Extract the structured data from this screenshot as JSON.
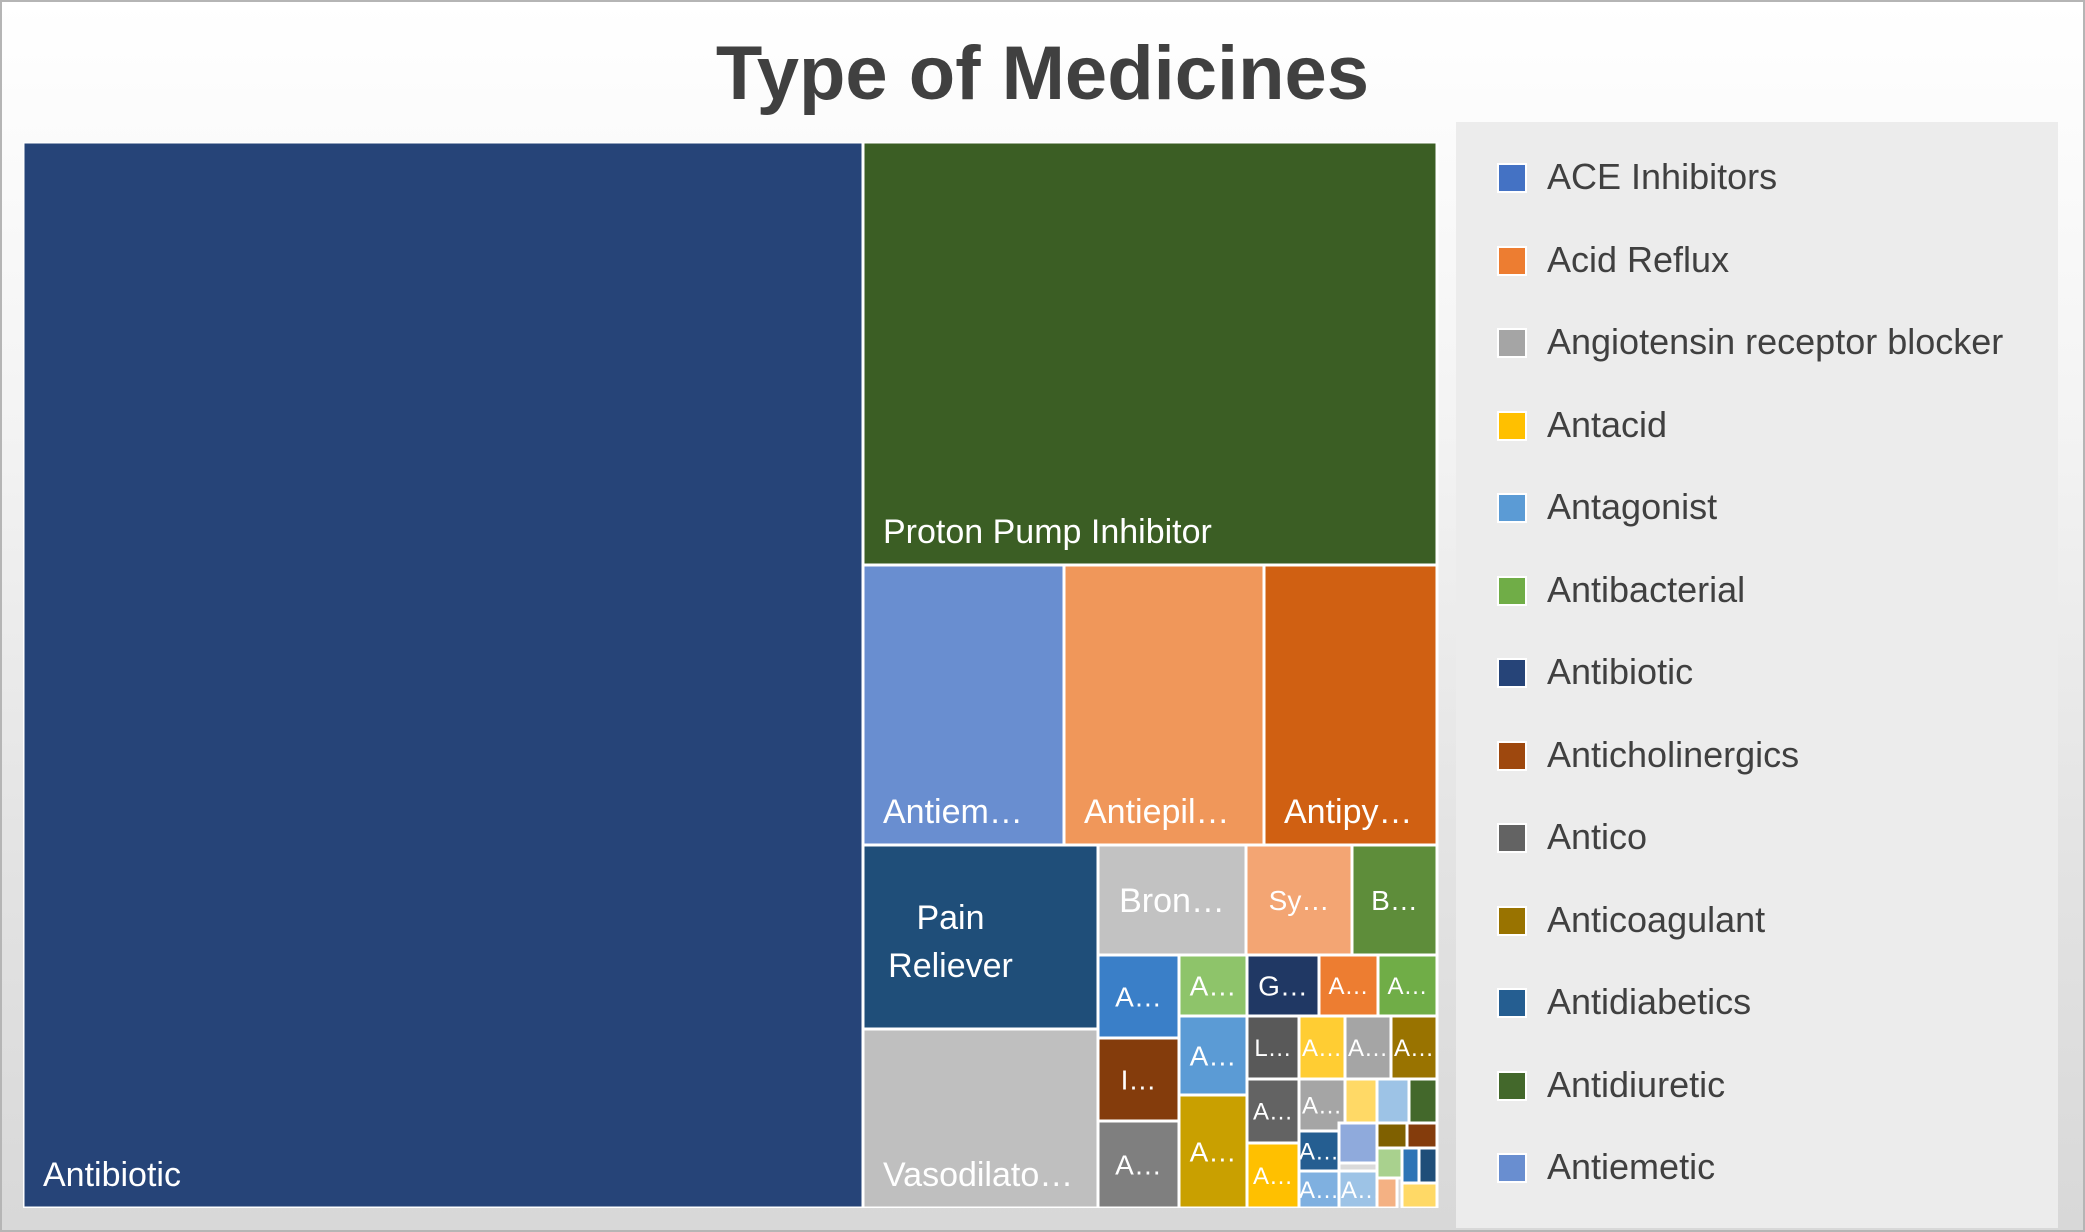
{
  "chart_data": {
    "type": "treemap",
    "title": "Type of Medicines",
    "legend_position": "right",
    "legend": [
      {
        "label": "ACE Inhibitors",
        "color": "#4472c4"
      },
      {
        "label": "Acid Reflux",
        "color": "#ed7d31"
      },
      {
        "label": "Angiotensin receptor blocker",
        "color": "#a5a5a5"
      },
      {
        "label": "Antacid",
        "color": "#ffc000"
      },
      {
        "label": "Antagonist",
        "color": "#5b9bd5"
      },
      {
        "label": "Antibacterial",
        "color": "#70ad47"
      },
      {
        "label": "Antibiotic",
        "color": "#264478"
      },
      {
        "label": "Anticholinergics",
        "color": "#9e480e"
      },
      {
        "label": "Antico",
        "color": "#636363"
      },
      {
        "label": "Anticoagulant",
        "color": "#997300"
      },
      {
        "label": "Antidiabetics",
        "color": "#255e91"
      },
      {
        "label": "Antidiuretic",
        "color": "#43682b"
      },
      {
        "label": "Antiemetic",
        "color": "#698ed0"
      }
    ],
    "tiles": [
      {
        "label": "Antibiotic",
        "value": 1000,
        "color": "#264478"
      },
      {
        "label": "Proton Pump Inhibitor",
        "value": 270,
        "color": "#3b5e24"
      },
      {
        "label": "Antiem…",
        "value": 62,
        "color": "#698ed0"
      },
      {
        "label": "Antiepil…",
        "value": 62,
        "color": "#f0975a"
      },
      {
        "label": "Antipy…",
        "value": 54,
        "color": "#d06012"
      },
      {
        "label": "Pain Reliever",
        "value": 47,
        "color": "#1f4e79"
      },
      {
        "label": "Vasodilato…",
        "value": 47,
        "color": "#bfbfbf"
      },
      {
        "label": "Bron…",
        "value": 18,
        "color": "#c2c2c2"
      },
      {
        "label": "Sy…",
        "value": 13,
        "color": "#f3a573"
      },
      {
        "label": "B…",
        "value": 10,
        "color": "#5e8d3a"
      },
      {
        "label": "A…",
        "value": 9,
        "color": "#3a7fc8"
      },
      {
        "label": "A…",
        "value": 8.5,
        "color": "#8ec46a"
      },
      {
        "label": "I…",
        "value": 6.5,
        "color": "#843c0c"
      },
      {
        "label": "A…",
        "value": 7,
        "color": "#5b9bd5"
      },
      {
        "label": "A…",
        "value": 6.5,
        "color": "#7f7f7f"
      },
      {
        "label": "A…",
        "value": 6.5,
        "color": "#c9a000"
      },
      {
        "label": "G…",
        "value": 5,
        "color": "#203864"
      },
      {
        "label": "A…",
        "value": 4,
        "color": "#ed7d31"
      },
      {
        "label": "A…",
        "value": 4,
        "color": "#70ad47"
      },
      {
        "label": "L…",
        "value": 4,
        "color": "#595959"
      },
      {
        "label": "A…",
        "value": 3.5,
        "color": "#636363"
      },
      {
        "label": "A…",
        "value": 3,
        "color": "#ffc000"
      },
      {
        "label": "A…",
        "value": 3,
        "color": "#ffcd33"
      },
      {
        "label": "A…",
        "value": 3,
        "color": "#a5a5a5"
      },
      {
        "label": "A…",
        "value": 3,
        "color": "#997300"
      },
      {
        "label": "A…",
        "value": 2.5,
        "color": "#a5a5a5"
      },
      {
        "label": "A…",
        "value": 2,
        "color": "#255e91"
      },
      {
        "label": "A…",
        "value": 2,
        "color": "#9dc3e6"
      },
      {
        "label": "A…",
        "value": 2,
        "color": "#7fb0e0"
      },
      {
        "label": "",
        "value": 1.5,
        "color": "#ffd966"
      },
      {
        "label": "",
        "value": 1.5,
        "color": "#9dc3e6"
      },
      {
        "label": "",
        "value": 1.5,
        "color": "#43682b"
      },
      {
        "label": "",
        "value": 1.5,
        "color": "#8faadc"
      },
      {
        "label": "",
        "value": 1,
        "color": "#7f6000"
      },
      {
        "label": "",
        "value": 1,
        "color": "#a9d18e"
      },
      {
        "label": "",
        "value": 1,
        "color": "#f4b183"
      },
      {
        "label": "",
        "value": 0.8,
        "color": "#843c0c"
      },
      {
        "label": "",
        "value": 0.6,
        "color": "#2e75b6"
      },
      {
        "label": "",
        "value": 0.6,
        "color": "#1f4e79"
      },
      {
        "label": "",
        "value": 0.6,
        "color": "#ffd966"
      }
    ]
  }
}
